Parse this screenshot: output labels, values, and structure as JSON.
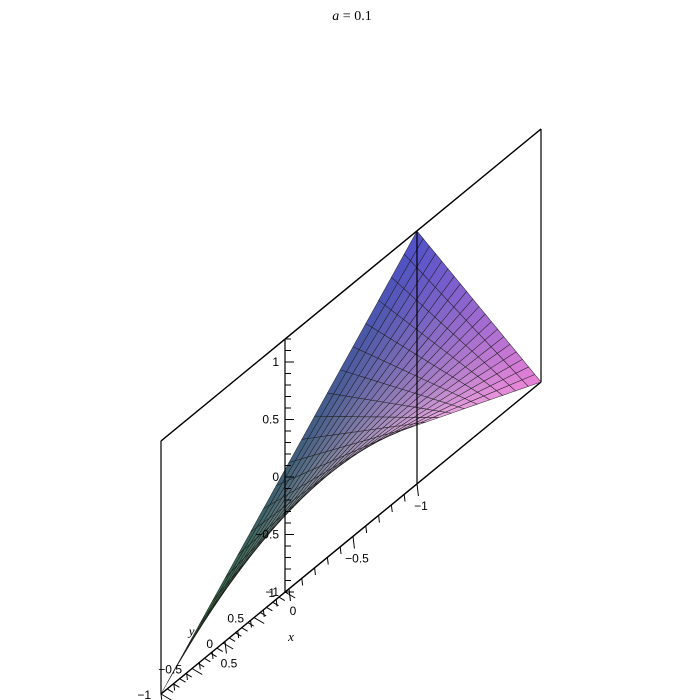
{
  "chart_data": {
    "type": "surface",
    "title": "a = 0.1",
    "title_var": "a",
    "title_rest": " = 0.1",
    "parameter": {
      "a": 0.1
    },
    "xlabel": "x",
    "ylabel": "y",
    "zlabel": "",
    "xlim": [
      -1,
      1
    ],
    "ylim": [
      -1,
      1
    ],
    "zlim": [
      -1,
      1.2
    ],
    "x_ticks": [
      1,
      0.5,
      0,
      -0.5,
      -1
    ],
    "x_tick_labels": [
      "1",
      "0.5",
      "0",
      "−0.5",
      "−1"
    ],
    "y_ticks": [
      -1,
      -0.5,
      0,
      0.5,
      1
    ],
    "y_tick_labels": [
      "−1",
      "−0.5",
      "0",
      "0.5",
      "1"
    ],
    "z_ticks": [
      1,
      0.5,
      0,
      -0.5,
      -1
    ],
    "z_tick_labels": [
      "1",
      "0.5",
      "0",
      "−0.5",
      "−1"
    ],
    "corner_values": [
      {
        "x": -1,
        "y": -1,
        "z": 1.2
      },
      {
        "x": 1,
        "y": -1,
        "z": -1
      },
      {
        "x": -1,
        "y": 1,
        "z": -1
      },
      {
        "x": 1,
        "y": 1,
        "z": 0.05
      }
    ],
    "grid_size": 21,
    "colors": {
      "surface_pink": "#e97fd6",
      "surface_blue": "#5b5be8",
      "surface_green": "#2f7a2a",
      "surface_white": "#f4eef8",
      "mesh_line": "#1a1a1a",
      "box_line": "#000000"
    }
  }
}
